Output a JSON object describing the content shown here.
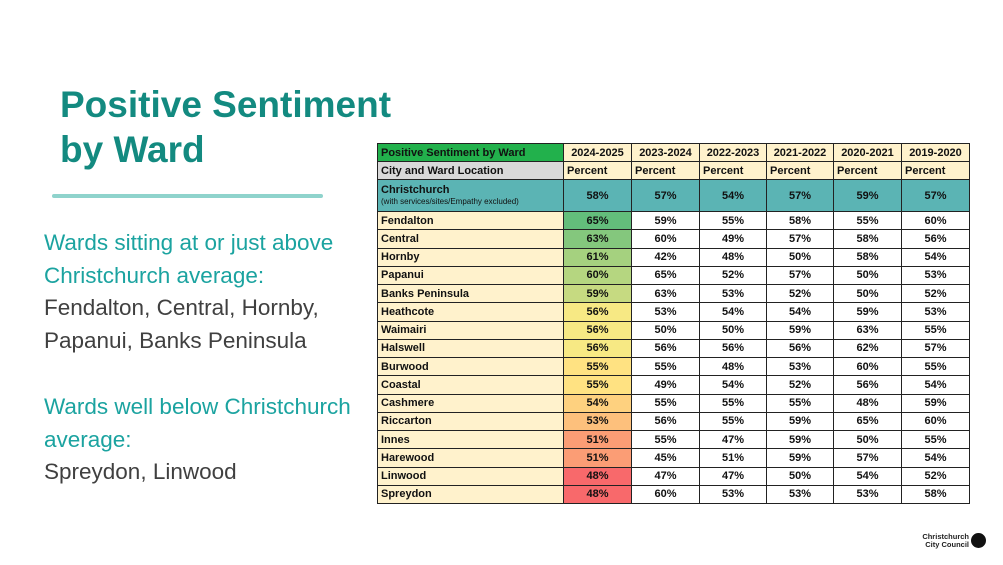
{
  "header": {
    "title_lines": [
      "Positive Sentiment",
      "by Ward"
    ]
  },
  "body": {
    "above_heading": [
      "Wards sitting at or just above",
      "Christchurch average:"
    ],
    "above_wards": [
      "Fendalton, Central, Hornby,",
      "Papanui, Banks Peninsula"
    ],
    "below_heading": [
      "Wards well below Christchurch",
      "average:"
    ],
    "below_wards": [
      "Spreydon, Linwood"
    ]
  },
  "table": {
    "columns": [
      "Positive Sentiment by Ward",
      "2024-2025",
      "2023-2024",
      "2022-2023",
      "2021-2022",
      "2020-2021",
      "2019-2020"
    ],
    "subheader": [
      "City and Ward Location",
      "Percent",
      "Percent",
      "Percent",
      "Percent",
      "Percent",
      "Percent"
    ],
    "city": {
      "name": "Christchurch",
      "note": "(with services/sites/Empathy excluded)",
      "values": [
        "58%",
        "57%",
        "54%",
        "57%",
        "59%",
        "57%"
      ]
    },
    "rows": [
      [
        "Fendalton",
        "65%",
        "59%",
        "55%",
        "58%",
        "55%",
        "60%"
      ],
      [
        "Central",
        "63%",
        "60%",
        "49%",
        "57%",
        "58%",
        "56%"
      ],
      [
        "Hornby",
        "61%",
        "42%",
        "48%",
        "50%",
        "58%",
        "54%"
      ],
      [
        "Papanui",
        "60%",
        "65%",
        "52%",
        "57%",
        "50%",
        "53%"
      ],
      [
        "Banks Peninsula",
        "59%",
        "63%",
        "53%",
        "52%",
        "50%",
        "52%"
      ],
      [
        "Heathcote",
        "56%",
        "53%",
        "54%",
        "54%",
        "59%",
        "53%"
      ],
      [
        "Waimairi",
        "56%",
        "50%",
        "50%",
        "59%",
        "63%",
        "55%"
      ],
      [
        "Halswell",
        "56%",
        "56%",
        "56%",
        "56%",
        "62%",
        "57%"
      ],
      [
        "Burwood",
        "55%",
        "55%",
        "48%",
        "53%",
        "60%",
        "55%"
      ],
      [
        "Coastal",
        "55%",
        "49%",
        "54%",
        "52%",
        "56%",
        "54%"
      ],
      [
        "Cashmere",
        "54%",
        "55%",
        "55%",
        "55%",
        "48%",
        "59%"
      ],
      [
        "Riccarton",
        "53%",
        "56%",
        "55%",
        "59%",
        "65%",
        "60%"
      ],
      [
        "Innes",
        "51%",
        "55%",
        "47%",
        "59%",
        "50%",
        "55%"
      ],
      [
        "Harewood",
        "51%",
        "45%",
        "51%",
        "59%",
        "57%",
        "54%"
      ],
      [
        "Linwood",
        "48%",
        "47%",
        "47%",
        "50%",
        "54%",
        "52%"
      ],
      [
        "Spreydon",
        "48%",
        "60%",
        "53%",
        "53%",
        "53%",
        "58%"
      ]
    ]
  },
  "logo": {
    "lines": [
      "Christchurch",
      "City Council"
    ]
  }
}
